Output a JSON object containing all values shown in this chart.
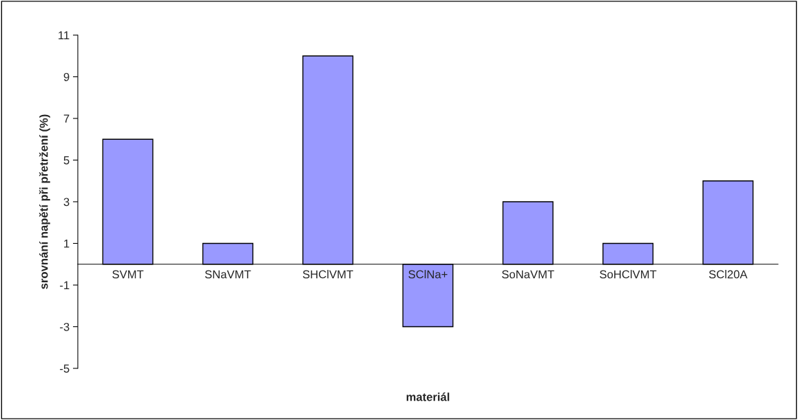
{
  "chart_data": {
    "type": "bar",
    "xlabel": "materiál",
    "ylabel": "srovnání napětí při přetržení (%)",
    "categories": [
      "SVMT",
      "SNaVMT",
      "SHClVMT",
      "SClNa+",
      "SoNaVMT",
      "SoHClVMT",
      "SCl20A"
    ],
    "values": [
      6,
      1,
      10,
      -3,
      3,
      1,
      4
    ],
    "color": "#9999ff",
    "ylim": [
      -5,
      11
    ],
    "yticks": [
      -5,
      -3,
      -1,
      1,
      3,
      5,
      7,
      9,
      11
    ],
    "grid": false
  }
}
